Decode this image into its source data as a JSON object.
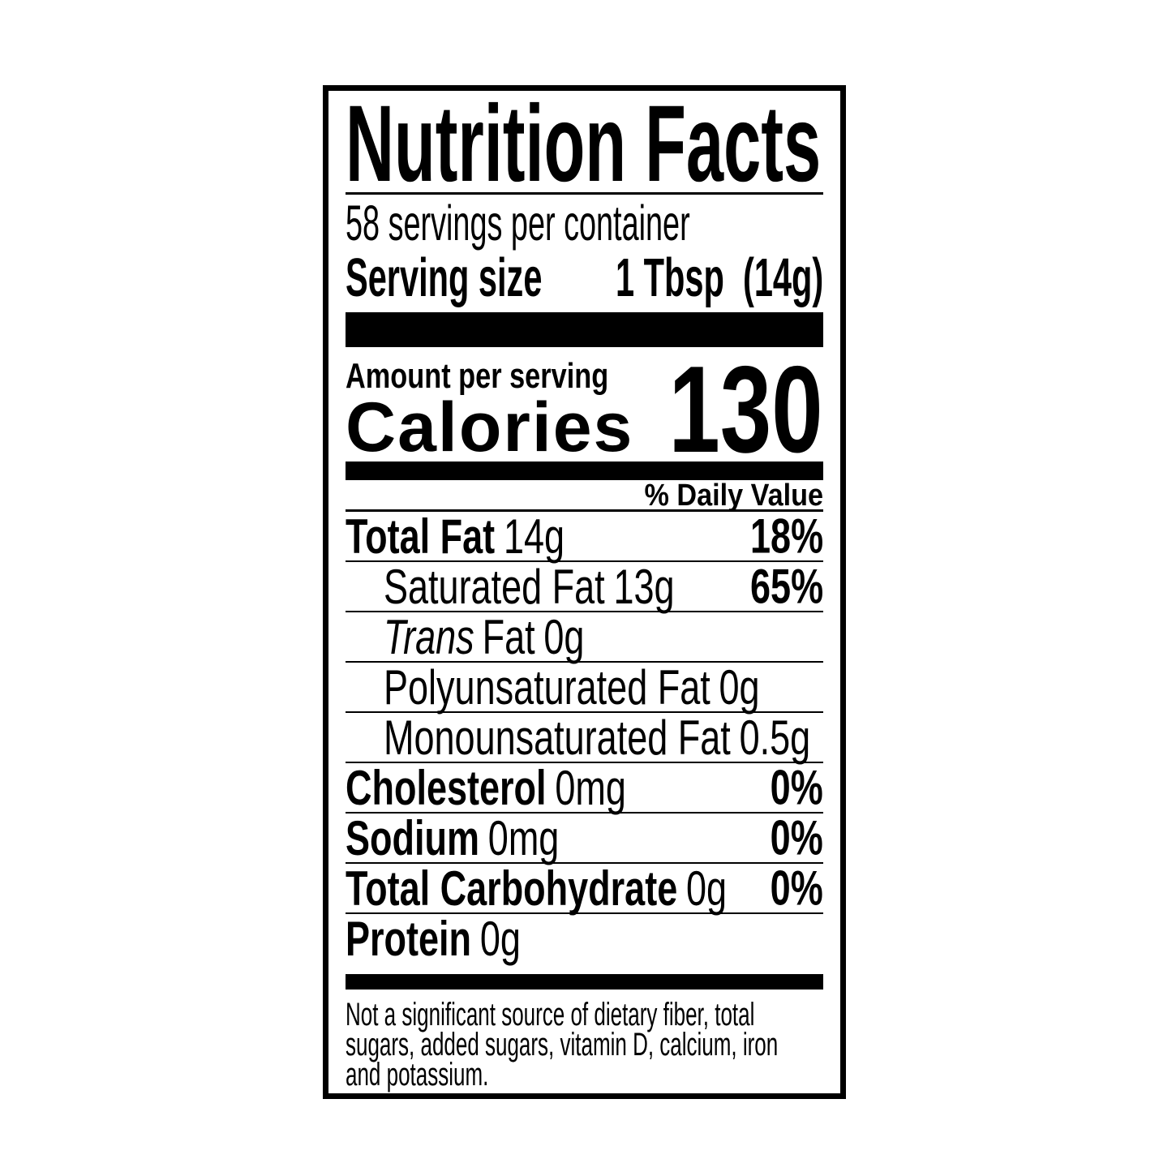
{
  "label": {
    "title": "Nutrition Facts",
    "servings_per_container": "58 servings per container",
    "serving_size": {
      "label": "Serving size",
      "value": "1 Tbsp  (14g)"
    },
    "amount_per_serving": "Amount per serving",
    "calories": {
      "label": "Calories",
      "value": "130"
    },
    "daily_value_header": "% Daily Value",
    "nutrients": [
      {
        "name": "Total Fat",
        "amount": "14g",
        "daily_value": "18%"
      },
      {
        "name": "Saturated Fat",
        "amount": "13g",
        "daily_value": "65%"
      },
      {
        "name_italic": "Trans",
        "name": "Fat",
        "amount": "0g",
        "daily_value": ""
      },
      {
        "name": "Polyunsaturated Fat",
        "amount": "0g",
        "daily_value": ""
      },
      {
        "name": "Monounsaturated Fat",
        "amount": "0.5g",
        "daily_value": ""
      },
      {
        "name": "Cholesterol",
        "amount": "0mg",
        "daily_value": "0%"
      },
      {
        "name": "Sodium",
        "amount": "0mg",
        "daily_value": "0%"
      },
      {
        "name": "Total Carbohydrate",
        "amount": "0g",
        "daily_value": "0%"
      },
      {
        "name": "Protein",
        "amount": "0g",
        "daily_value": ""
      }
    ],
    "footnote_lines": [
      "Not a significant source of dietary fiber, total",
      "sugars, added sugars, vitamin D, calcium, iron",
      "and potassium."
    ],
    "colors": {
      "text": "#000000",
      "background": "#ffffff"
    }
  }
}
